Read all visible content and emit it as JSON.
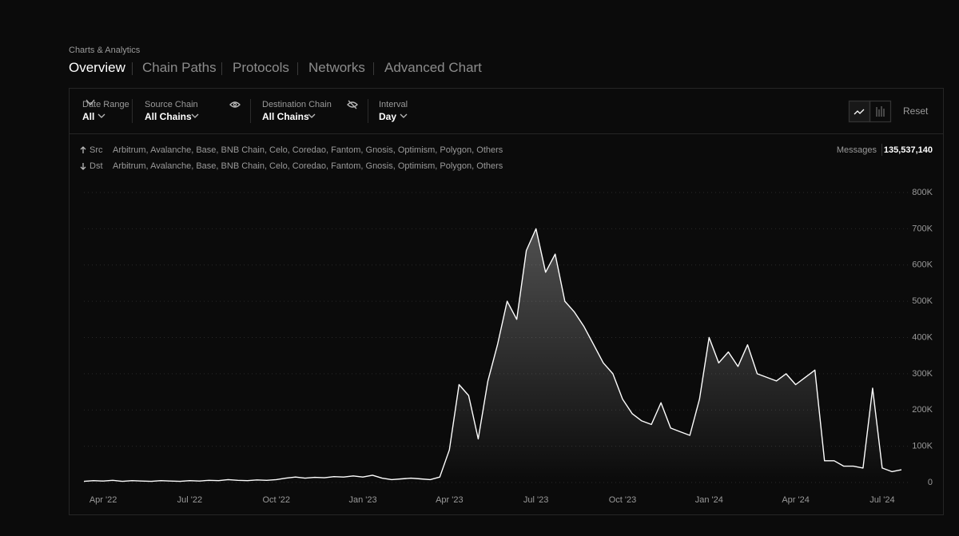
{
  "breadcrumb": "Charts & Analytics",
  "tabs": [
    "Overview",
    "Chain Paths",
    "Protocols",
    "Networks",
    "Advanced Chart"
  ],
  "filters": [
    {
      "label": "Date Range",
      "value": "All"
    },
    {
      "label": "Source Chain",
      "value": "All Chains"
    },
    {
      "label": "Destination Chain",
      "value": "All Chains"
    },
    {
      "label": "Interval",
      "value": "Day"
    }
  ],
  "reset": "Reset",
  "routes": [
    {
      "label": "Src",
      "chains": "Arbitrum, Avalanche, Base, BNB Chain, Celo, Coredao, Fantom, Gnosis, Optimism, Polygon, Others"
    },
    {
      "label": "Dst",
      "chains": "Arbitrum, Avalanche, Base, BNB Chain, Celo, Coredao, Fantom, Gnosis, Optimism, Polygon, Others"
    }
  ],
  "messages": {
    "label": "Messages",
    "value": "135,537,140"
  },
  "chart_data": {
    "type": "line",
    "color": "#ffffff",
    "grid": true,
    "categories": [
      null,
      null,
      "Apr '22",
      null,
      null,
      null,
      null,
      null,
      null,
      null,
      null,
      "Jul '22",
      null,
      null,
      null,
      null,
      null,
      null,
      null,
      null,
      "Oct '22",
      null,
      null,
      null,
      null,
      null,
      null,
      null,
      null,
      "Jan '23",
      null,
      null,
      null,
      null,
      null,
      null,
      null,
      null,
      "Apr '23",
      null,
      null,
      null,
      null,
      null,
      null,
      null,
      null,
      "Jul '23",
      null,
      null,
      null,
      null,
      null,
      null,
      null,
      null,
      "Oct '23",
      null,
      null,
      null,
      null,
      null,
      null,
      null,
      null,
      "Jan '24",
      null,
      null,
      null,
      null,
      null,
      null,
      null,
      null,
      "Apr '24",
      null,
      null,
      null,
      null,
      null,
      null,
      null,
      null,
      "Jul '24",
      null,
      null
    ],
    "values": [
      3000,
      5000,
      4000,
      6000,
      3000,
      5000,
      4000,
      3000,
      5000,
      4000,
      3000,
      5000,
      4000,
      6000,
      5000,
      8000,
      6000,
      5000,
      7000,
      6000,
      8000,
      12000,
      15000,
      12000,
      14000,
      13000,
      16000,
      15000,
      18000,
      15000,
      20000,
      12000,
      8000,
      10000,
      12000,
      10000,
      8000,
      15000,
      90000,
      270000,
      240000,
      120000,
      280000,
      380000,
      500000,
      450000,
      640000,
      700000,
      580000,
      630000,
      500000,
      470000,
      430000,
      380000,
      330000,
      300000,
      230000,
      190000,
      170000,
      160000,
      220000,
      150000,
      140000,
      130000,
      230000,
      400000,
      330000,
      360000,
      320000,
      380000,
      300000,
      290000,
      280000,
      300000,
      270000,
      290000,
      310000,
      60000,
      60000,
      45000,
      45000,
      40000,
      260000,
      40000,
      30000,
      35000
    ],
    "ylim": [
      0,
      800000
    ],
    "yticks": [
      0,
      {
        "value": 100000,
        "label": "100K"
      },
      {
        "value": 200000,
        "label": "200K"
      },
      {
        "value": 300000,
        "label": "300K"
      },
      {
        "value": 400000,
        "label": "400K"
      },
      {
        "value": 500000,
        "label": "500K"
      },
      {
        "value": 600000,
        "label": "600K"
      },
      {
        "value": 700000,
        "label": "700K"
      },
      {
        "value": 800000,
        "label": "800K"
      }
    ]
  }
}
